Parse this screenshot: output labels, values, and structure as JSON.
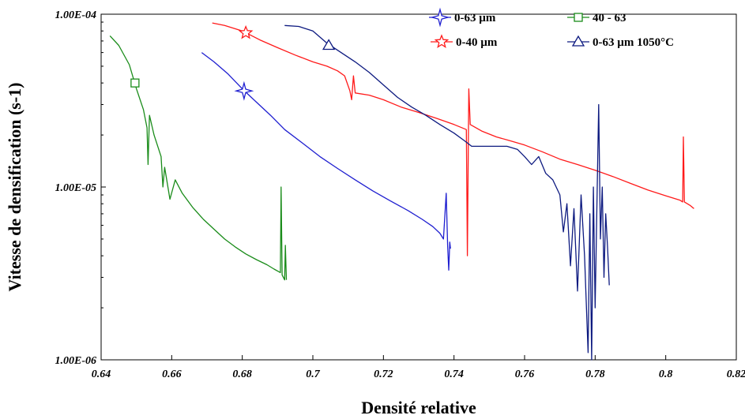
{
  "chart_data": {
    "type": "line",
    "title": "",
    "xlabel": "Densité relative",
    "ylabel": "Vitesse de densification (s-1)",
    "xlim": [
      0.64,
      0.82
    ],
    "ylim": [
      1e-06,
      0.0001
    ],
    "y_scale": "log",
    "grid": false,
    "legend_position": "top-right",
    "x_ticks": [
      {
        "value": 0.64,
        "label": "0.64"
      },
      {
        "value": 0.66,
        "label": "0.66"
      },
      {
        "value": 0.68,
        "label": "0.68"
      },
      {
        "value": 0.7,
        "label": "0.7"
      },
      {
        "value": 0.72,
        "label": "0.72"
      },
      {
        "value": 0.74,
        "label": "0.74"
      },
      {
        "value": 0.76,
        "label": "0.76"
      },
      {
        "value": 0.78,
        "label": "0.78"
      },
      {
        "value": 0.8,
        "label": "0.8"
      },
      {
        "value": 0.82,
        "label": "0.82"
      }
    ],
    "y_ticks": [
      {
        "value": 0.0001,
        "label": "1.00E-04"
      },
      {
        "value": 1e-05,
        "label": "1.00E-05"
      },
      {
        "value": 1e-06,
        "label": "1.00E-06"
      }
    ],
    "series": [
      {
        "name": "0-63 µm",
        "color": "#1f1fd0",
        "marker": "star4",
        "marker_at": [
          0.6805,
          3.6e-05
        ],
        "points": [
          [
            0.6685,
            6e-05
          ],
          [
            0.672,
            5.3e-05
          ],
          [
            0.676,
            4.5e-05
          ],
          [
            0.68,
            3.7e-05
          ],
          [
            0.684,
            3.1e-05
          ],
          [
            0.688,
            2.6e-05
          ],
          [
            0.692,
            2.15e-05
          ],
          [
            0.697,
            1.8e-05
          ],
          [
            0.702,
            1.5e-05
          ],
          [
            0.707,
            1.28e-05
          ],
          [
            0.712,
            1.1e-05
          ],
          [
            0.717,
            9.5e-06
          ],
          [
            0.722,
            8.3e-06
          ],
          [
            0.727,
            7.3e-06
          ],
          [
            0.731,
            6.5e-06
          ],
          [
            0.734,
            5.9e-06
          ],
          [
            0.736,
            5.4e-06
          ],
          [
            0.737,
            5e-06
          ],
          [
            0.7378,
            9.2e-06
          ],
          [
            0.7382,
            4.6e-06
          ],
          [
            0.7385,
            3.3e-06
          ],
          [
            0.7388,
            4.8e-06
          ],
          [
            0.739,
            4.4e-06
          ]
        ]
      },
      {
        "name": "0-40 µm",
        "color": "#ff1a1a",
        "marker": "star5",
        "marker_at": [
          0.681,
          7.8e-05
        ],
        "points": [
          [
            0.6715,
            8.9e-05
          ],
          [
            0.675,
            8.6e-05
          ],
          [
            0.68,
            8e-05
          ],
          [
            0.685,
            7.1e-05
          ],
          [
            0.69,
            6.4e-05
          ],
          [
            0.695,
            5.8e-05
          ],
          [
            0.7,
            5.3e-05
          ],
          [
            0.704,
            5e-05
          ],
          [
            0.707,
            4.7e-05
          ],
          [
            0.709,
            4.4e-05
          ],
          [
            0.7105,
            3.6e-05
          ],
          [
            0.711,
            3.2e-05
          ],
          [
            0.7115,
            4.4e-05
          ],
          [
            0.712,
            3.5e-05
          ],
          [
            0.716,
            3.4e-05
          ],
          [
            0.72,
            3.2e-05
          ],
          [
            0.725,
            2.9e-05
          ],
          [
            0.73,
            2.7e-05
          ],
          [
            0.735,
            2.5e-05
          ],
          [
            0.74,
            2.3e-05
          ],
          [
            0.7435,
            2.15e-05
          ],
          [
            0.7438,
            4e-06
          ],
          [
            0.7442,
            3.7e-05
          ],
          [
            0.7446,
            2.3e-05
          ],
          [
            0.748,
            2.1e-05
          ],
          [
            0.752,
            1.95e-05
          ],
          [
            0.756,
            1.85e-05
          ],
          [
            0.76,
            1.75e-05
          ],
          [
            0.765,
            1.6e-05
          ],
          [
            0.77,
            1.45e-05
          ],
          [
            0.775,
            1.35e-05
          ],
          [
            0.78,
            1.25e-05
          ],
          [
            0.785,
            1.15e-05
          ],
          [
            0.79,
            1.05e-05
          ],
          [
            0.795,
            9.6e-06
          ],
          [
            0.8,
            8.9e-06
          ],
          [
            0.804,
            8.4e-06
          ],
          [
            0.8048,
            8.2e-06
          ],
          [
            0.805,
            1.95e-05
          ],
          [
            0.8053,
            8.2e-06
          ],
          [
            0.807,
            7.8e-06
          ],
          [
            0.808,
            7.5e-06
          ]
        ]
      },
      {
        "name": "40 - 63",
        "color": "#1a8c1a",
        "marker": "square",
        "marker_at": [
          0.6496,
          4e-05
        ],
        "points": [
          [
            0.6425,
            7.5e-05
          ],
          [
            0.645,
            6.6e-05
          ],
          [
            0.648,
            5.1e-05
          ],
          [
            0.65,
            3.7e-05
          ],
          [
            0.652,
            2.8e-05
          ],
          [
            0.653,
            2.2e-05
          ],
          [
            0.6533,
            1.35e-05
          ],
          [
            0.6537,
            2.6e-05
          ],
          [
            0.655,
            2e-05
          ],
          [
            0.657,
            1.5e-05
          ],
          [
            0.6575,
            1e-05
          ],
          [
            0.658,
            1.3e-05
          ],
          [
            0.6595,
            8.5e-06
          ],
          [
            0.661,
            1.1e-05
          ],
          [
            0.663,
            9.2e-06
          ],
          [
            0.666,
            7.6e-06
          ],
          [
            0.669,
            6.5e-06
          ],
          [
            0.672,
            5.7e-06
          ],
          [
            0.675,
            5e-06
          ],
          [
            0.678,
            4.5e-06
          ],
          [
            0.681,
            4.1e-06
          ],
          [
            0.684,
            3.8e-06
          ],
          [
            0.687,
            3.55e-06
          ],
          [
            0.689,
            3.35e-06
          ],
          [
            0.6908,
            3.2e-06
          ],
          [
            0.691,
            1e-05
          ],
          [
            0.6913,
            3.1e-06
          ],
          [
            0.692,
            2.9e-06
          ],
          [
            0.6922,
            4.6e-06
          ],
          [
            0.6925,
            2.9e-06
          ]
        ]
      },
      {
        "name": "0-63 µm 1050°C",
        "color": "#0d1a80",
        "marker": "triangle",
        "marker_at": [
          0.7045,
          6.6e-05
        ],
        "points": [
          [
            0.692,
            8.6e-05
          ],
          [
            0.696,
            8.5e-05
          ],
          [
            0.7,
            8e-05
          ],
          [
            0.704,
            6.8e-05
          ],
          [
            0.708,
            6e-05
          ],
          [
            0.712,
            5.3e-05
          ],
          [
            0.716,
            4.6e-05
          ],
          [
            0.72,
            3.9e-05
          ],
          [
            0.724,
            3.3e-05
          ],
          [
            0.728,
            2.9e-05
          ],
          [
            0.732,
            2.6e-05
          ],
          [
            0.736,
            2.3e-05
          ],
          [
            0.74,
            2.05e-05
          ],
          [
            0.743,
            1.85e-05
          ],
          [
            0.745,
            1.72e-05
          ],
          [
            0.75,
            1.72e-05
          ],
          [
            0.755,
            1.72e-05
          ],
          [
            0.758,
            1.65e-05
          ],
          [
            0.76,
            1.5e-05
          ],
          [
            0.762,
            1.35e-05
          ],
          [
            0.764,
            1.5e-05
          ],
          [
            0.766,
            1.2e-05
          ],
          [
            0.768,
            1.1e-05
          ],
          [
            0.77,
            9e-06
          ],
          [
            0.771,
            5.5e-06
          ],
          [
            0.772,
            8e-06
          ],
          [
            0.773,
            3.5e-06
          ],
          [
            0.774,
            7.5e-06
          ],
          [
            0.775,
            2.5e-06
          ],
          [
            0.776,
            9e-06
          ],
          [
            0.777,
            4e-06
          ],
          [
            0.778,
            1.1e-06
          ],
          [
            0.7785,
            7e-06
          ],
          [
            0.779,
            1e-06
          ],
          [
            0.7795,
            1e-05
          ],
          [
            0.78,
            2e-06
          ],
          [
            0.7805,
            8e-06
          ],
          [
            0.781,
            3e-05
          ],
          [
            0.7815,
            5e-06
          ],
          [
            0.782,
            1e-05
          ],
          [
            0.7825,
            3e-06
          ],
          [
            0.783,
            7e-06
          ],
          [
            0.7835,
            4.5e-06
          ],
          [
            0.784,
            2.7e-06
          ]
        ]
      }
    ]
  }
}
